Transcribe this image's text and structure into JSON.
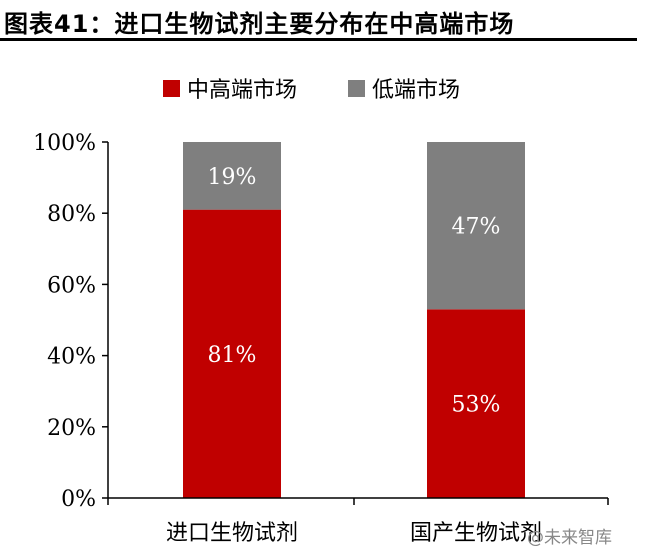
{
  "title": "图表41：进口生物试剂主要分布在中高端市场",
  "watermark": "@未来智库",
  "colors": {
    "high_end": "#c00000",
    "low_end": "#7f7f7f",
    "axis": "#000000",
    "label_text": "#ffffff"
  },
  "chart_data": {
    "type": "bar",
    "stacked": true,
    "categories": [
      "进口生物试剂",
      "国产生物试剂"
    ],
    "series": [
      {
        "name": "中高端市场",
        "values": [
          81,
          53
        ],
        "labels": [
          "81%",
          "53%"
        ],
        "color": "#c00000"
      },
      {
        "name": "低端市场",
        "values": [
          19,
          47
        ],
        "labels": [
          "19%",
          "47%"
        ],
        "color": "#7f7f7f"
      }
    ],
    "ylim": [
      0,
      100
    ],
    "y_ticks": [
      "0%",
      "20%",
      "40%",
      "60%",
      "80%",
      "100%"
    ],
    "legend_position": "top",
    "grid": false
  }
}
